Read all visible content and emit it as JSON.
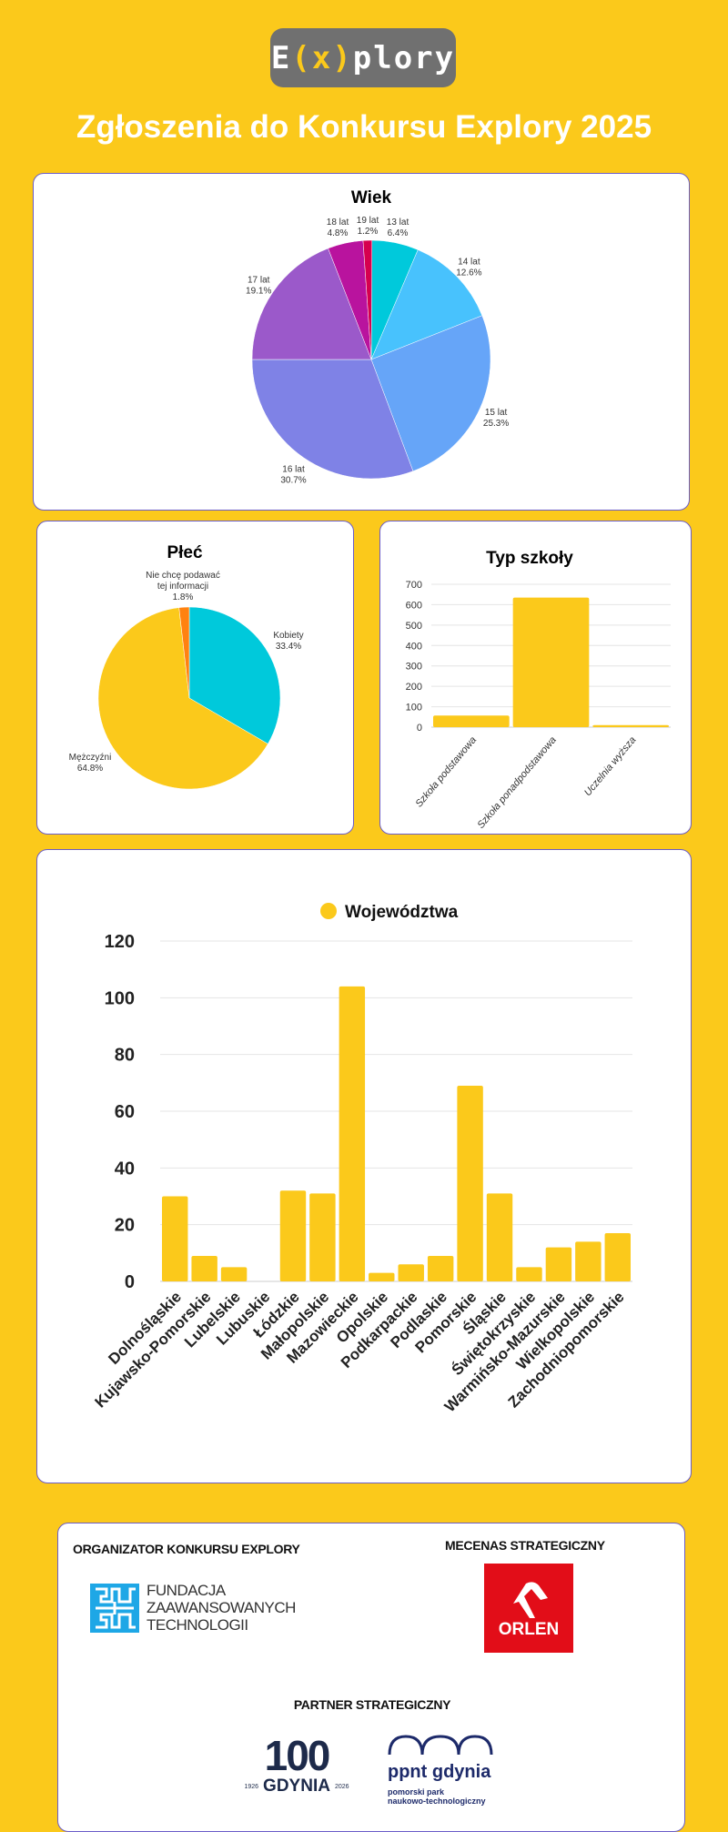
{
  "header": {
    "logo_text": [
      "E",
      "(x)",
      "plory"
    ],
    "title": "Zgłoszenia do Konkursu Explory 2025"
  },
  "colors": {
    "background": "#fbc91b",
    "bar": "#fbc91b"
  },
  "chart_data": [
    {
      "type": "pie",
      "title": "Wiek",
      "slices": [
        {
          "label": "13 lat",
          "value": 6.4,
          "color": "#00c9db"
        },
        {
          "label": "14 lat",
          "value": 12.6,
          "color": "#48c2fd"
        },
        {
          "label": "15 lat",
          "value": 25.3,
          "color": "#66a5f8"
        },
        {
          "label": "16 lat",
          "value": 30.7,
          "color": "#7f82e6"
        },
        {
          "label": "17 lat",
          "value": 19.1,
          "color": "#9b59ca"
        },
        {
          "label": "18 lat",
          "value": 4.8,
          "color": "#b9139e"
        },
        {
          "label": "19 lat",
          "value": 1.2,
          "color": "#d6004f"
        }
      ]
    },
    {
      "type": "pie",
      "title": "Płeć",
      "slices": [
        {
          "label": "Kobiety",
          "value": 33.4,
          "color": "#00c9db"
        },
        {
          "label": "Mężczyźni",
          "value": 64.8,
          "color": "#fbc91b"
        },
        {
          "label": "Nie chcę podawać tej informacji",
          "value": 1.8,
          "color": "#ff8210"
        }
      ]
    },
    {
      "type": "bar",
      "title": "Typ szkoły",
      "categories": [
        "Szkoła podstawowa",
        "Szkoła ponadpodstawowa",
        "Uczelnia wyższa"
      ],
      "values": [
        57,
        635,
        10
      ],
      "ylim": [
        0,
        700
      ],
      "yticks": [
        0,
        100,
        200,
        300,
        400,
        500,
        600,
        700
      ]
    },
    {
      "type": "bar",
      "legend": "Województwa",
      "legend_position": "top-center",
      "categories": [
        "Dolnośląskie",
        "Kujawsko-Pomorskie",
        "Lubelskie",
        "Lubuskie",
        "Łódzkie",
        "Małopolskie",
        "Mazowieckie",
        "Opolskie",
        "Podkarpackie",
        "Podlaskie",
        "Pomorskie",
        "Śląskie",
        "Świętokrzyskie",
        "Warmińsko-Mazurskie",
        "Wielkopolskie",
        "Zachodniopomorskie"
      ],
      "values": [
        30,
        9,
        5,
        0,
        32,
        31,
        104,
        3,
        6,
        9,
        69,
        31,
        5,
        12,
        14,
        17
      ],
      "ylim": [
        0,
        120
      ],
      "yticks": [
        0,
        20,
        40,
        60,
        80,
        100,
        120
      ]
    }
  ],
  "footer": {
    "organizer_label": "ORGANIZATOR KONKURSU EXPLORY",
    "organizer_logo": [
      "FUNDACJA",
      "ZAAWANSOWANYCH",
      "TECHNOLOGII"
    ],
    "patron_label": "MECENAS STRATEGICZNY",
    "patron_logo": "ORLEN",
    "partner_label": "PARTNER STRATEGICZNY",
    "partner1_logo": {
      "number": "100",
      "city": "GDYNIA",
      "from": "1926",
      "to": "2026"
    },
    "partner2_logo": {
      "name": "ppnt gdynia",
      "line1": "pomorski park",
      "line2": "naukowo-technologiczny"
    }
  }
}
